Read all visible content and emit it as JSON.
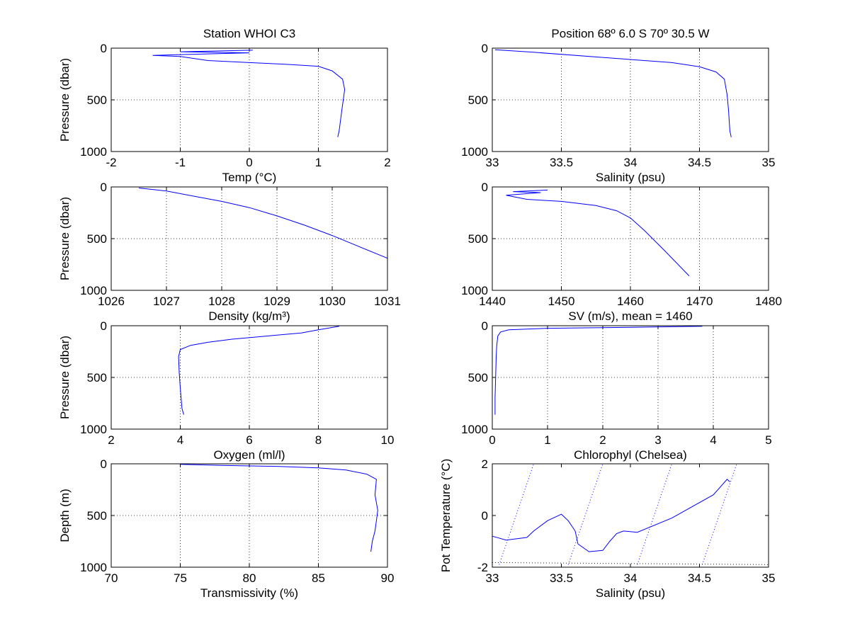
{
  "chart_data": [
    {
      "type": "line",
      "title": "Station  WHOI C3",
      "xlabel": "Temp (°C)",
      "ylabel": "Pressure (dbar)",
      "xlim": [
        -2,
        2
      ],
      "ylim": [
        1000,
        0
      ],
      "xticks": [
        "-2",
        "-1",
        "0",
        "1",
        "2"
      ],
      "yticks": [
        "0",
        "500",
        "1000"
      ],
      "grid": true,
      "series": [
        {
          "x": [
            0.05,
            -1.0,
            0.0,
            -1.4,
            -1.0,
            -0.6,
            0.0,
            0.5,
            1.0,
            1.2,
            1.35,
            1.38,
            1.34,
            1.3,
            1.28
          ],
          "y": [
            20,
            35,
            45,
            70,
            80,
            120,
            140,
            155,
            175,
            220,
            300,
            400,
            600,
            800,
            860
          ]
        }
      ]
    },
    {
      "type": "line",
      "title": "Position 68º  6.0 S 70º 30.5 W",
      "xlabel": "Salinity (psu)",
      "ylabel": "",
      "xlim": [
        33,
        35
      ],
      "ylim": [
        1000,
        0
      ],
      "xticks": [
        "33",
        "33.5",
        "34",
        "34.5",
        "35"
      ],
      "yticks": [
        "0",
        "500",
        "1000"
      ],
      "grid": true,
      "series": [
        {
          "x": [
            33.02,
            33.3,
            33.8,
            34.1,
            34.3,
            34.5,
            34.62,
            34.68,
            34.7,
            34.71,
            34.72,
            34.73
          ],
          "y": [
            15,
            40,
            90,
            120,
            140,
            180,
            230,
            300,
            450,
            600,
            800,
            860
          ]
        }
      ]
    },
    {
      "type": "line",
      "title": "",
      "xlabel": "Density (kg/m³)",
      "ylabel": "Pressure (dbar)",
      "xlim": [
        1026,
        1031
      ],
      "ylim": [
        1000,
        0
      ],
      "xticks": [
        "1026",
        "1027",
        "1028",
        "1029",
        "1030",
        "1031"
      ],
      "yticks": [
        "0",
        "500",
        "1000"
      ],
      "grid": true,
      "series": [
        {
          "x": [
            1026.5,
            1027.0,
            1027.5,
            1028.0,
            1028.5,
            1029.0,
            1029.5,
            1030.0,
            1030.5,
            1031.0
          ],
          "y": [
            10,
            40,
            90,
            140,
            200,
            280,
            370,
            470,
            580,
            690
          ]
        }
      ]
    },
    {
      "type": "line",
      "title": "",
      "xlabel": "SV (m/s), mean = 1460",
      "ylabel": "",
      "xlim": [
        1440,
        1480
      ],
      "ylim": [
        1000,
        0
      ],
      "xticks": [
        "1440",
        "1450",
        "1460",
        "1470",
        "1480"
      ],
      "yticks": [
        "0",
        "500",
        "1000"
      ],
      "grid": true,
      "series": [
        {
          "x": [
            1448,
            1443,
            1447,
            1442,
            1445,
            1450,
            1455,
            1458,
            1460,
            1462,
            1465,
            1468.5
          ],
          "y": [
            30,
            45,
            55,
            80,
            120,
            140,
            180,
            230,
            300,
            420,
            620,
            860
          ]
        }
      ]
    },
    {
      "type": "line",
      "title": "",
      "xlabel": "Oxygen (ml/l)",
      "ylabel": "Pressure (dbar)",
      "xlim": [
        2,
        10
      ],
      "ylim": [
        1000,
        0
      ],
      "xticks": [
        "2",
        "4",
        "6",
        "8",
        "10"
      ],
      "yticks": [
        "0",
        "500",
        "1000"
      ],
      "grid": true,
      "series": [
        {
          "x": [
            8.6,
            8.0,
            7.5,
            6.5,
            5.5,
            4.8,
            4.3,
            4.0,
            3.95,
            3.97,
            4.0,
            4.05,
            4.1
          ],
          "y": [
            5,
            40,
            70,
            100,
            130,
            160,
            190,
            230,
            300,
            450,
            600,
            800,
            860
          ]
        }
      ]
    },
    {
      "type": "line",
      "title": "",
      "xlabel": "Chlorophyl (Chelsea)",
      "ylabel": "",
      "xlim": [
        0,
        5
      ],
      "ylim": [
        1000,
        0
      ],
      "xticks": [
        "0",
        "1",
        "2",
        "3",
        "4",
        "5"
      ],
      "yticks": [
        "0",
        "500",
        "1000"
      ],
      "grid": true,
      "series": [
        {
          "x": [
            3.8,
            2.5,
            1.0,
            0.3,
            0.15,
            0.1,
            0.08,
            0.07,
            0.06,
            0.05,
            0.05
          ],
          "y": [
            5,
            15,
            25,
            40,
            60,
            100,
            200,
            300,
            500,
            700,
            860
          ]
        }
      ]
    },
    {
      "type": "line",
      "title": "",
      "xlabel": "Transmissivity (%)",
      "ylabel": "Depth (m)",
      "xlim": [
        70,
        90
      ],
      "ylim": [
        1000,
        0
      ],
      "xticks": [
        "70",
        "75",
        "80",
        "85",
        "90"
      ],
      "yticks": [
        "0",
        "500",
        "1000"
      ],
      "grid": true,
      "series": [
        {
          "x": [
            75,
            78,
            82,
            85,
            87,
            88.5,
            89.2,
            89.1,
            89.3,
            89.2,
            89.1,
            88.9,
            88.8
          ],
          "y": [
            5,
            15,
            25,
            40,
            60,
            100,
            150,
            300,
            450,
            550,
            650,
            750,
            850
          ]
        }
      ]
    },
    {
      "type": "line",
      "title": "",
      "xlabel": "Salinity (psu)",
      "ylabel": "Pot Temperature (°C)",
      "xlim": [
        33,
        35
      ],
      "ylim": [
        -2,
        2
      ],
      "xticks": [
        "33",
        "33.5",
        "34",
        "34.5",
        "35"
      ],
      "yticks": [
        "-2",
        "0",
        "2"
      ],
      "grid": false,
      "series": [
        {
          "x": [
            33.0,
            33.1,
            33.25,
            33.3,
            33.4,
            33.5,
            33.55,
            33.6,
            33.62,
            33.7,
            33.8,
            33.85,
            33.9,
            33.95,
            34.05,
            34.3,
            34.6,
            34.7,
            34.72
          ],
          "y": [
            -0.8,
            -0.95,
            -0.85,
            -0.6,
            -0.2,
            0.05,
            -0.2,
            -0.6,
            -1.1,
            -1.4,
            -1.35,
            -1.0,
            -0.7,
            -0.6,
            -0.65,
            -0.1,
            0.8,
            1.4,
            1.3
          ]
        }
      ],
      "isopycnals": [
        {
          "x": [
            33.05,
            33.3
          ],
          "y": [
            -1.9,
            2.0
          ]
        },
        {
          "x": [
            33.55,
            33.8
          ],
          "y": [
            -1.9,
            2.0
          ]
        },
        {
          "x": [
            34.05,
            34.3
          ],
          "y": [
            -1.9,
            2.0
          ]
        },
        {
          "x": [
            34.52,
            34.77
          ],
          "y": [
            -1.9,
            2.0
          ]
        }
      ],
      "freezing_line": {
        "x": [
          33,
          35
        ],
        "y": [
          -1.82,
          -1.9
        ]
      }
    }
  ]
}
